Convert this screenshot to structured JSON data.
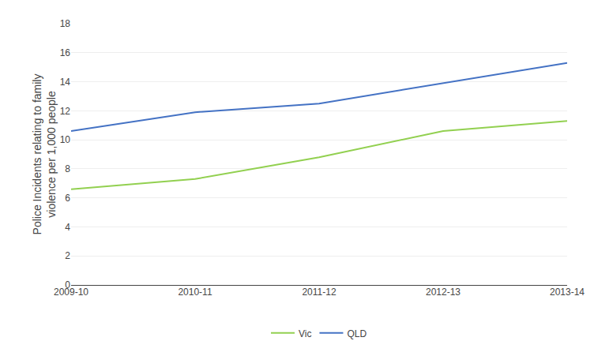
{
  "chart_data": {
    "type": "line",
    "ylabel": "Police Incidents relating to family\nviolence per 1,000 people",
    "categories": [
      "2009-10",
      "2010-11",
      "2011-12",
      "2012-13",
      "2013-14"
    ],
    "series": [
      {
        "name": "Vic",
        "color": "#92d050",
        "values": [
          6.6,
          7.3,
          8.8,
          10.6,
          11.3
        ]
      },
      {
        "name": "QLD",
        "color": "#4472c4",
        "values": [
          10.6,
          11.9,
          12.5,
          13.9,
          15.3
        ]
      }
    ],
    "ylim": [
      0,
      18
    ],
    "yticks": [
      0,
      2,
      4,
      6,
      8,
      10,
      12,
      14,
      16,
      18
    ],
    "grid": true,
    "legend": "bottom"
  }
}
